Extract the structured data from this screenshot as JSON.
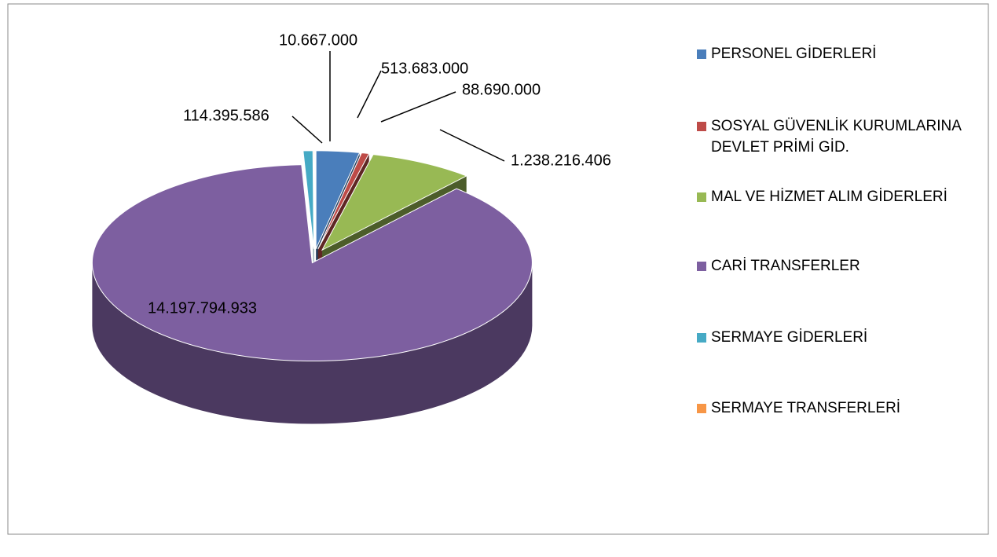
{
  "chart_data": {
    "type": "pie3d",
    "categories": [
      "PERSONEL GİDERLERİ",
      "SOSYAL GÜVENLİK KURUMLARINA DEVLET PRİMİ GİD.",
      "MAL VE HİZMET ALIM GİDERLERİ",
      "CARİ TRANSFERLER",
      "SERMAYE GİDERLERİ",
      "SERMAYE TRANSFERLERİ"
    ],
    "values": [
      513683000,
      88690000,
      1238216406,
      14197794933,
      114395586,
      10667000
    ],
    "value_labels": [
      "513.683.000",
      "88.690.000",
      "1.238.216.406",
      "14.197.794.933",
      "114.395.586",
      "10.667.000"
    ],
    "colors": [
      "#4a7ebb",
      "#be4b48",
      "#98b954",
      "#7d5fa0",
      "#46aac5",
      "#f79646"
    ],
    "legend": "right"
  }
}
